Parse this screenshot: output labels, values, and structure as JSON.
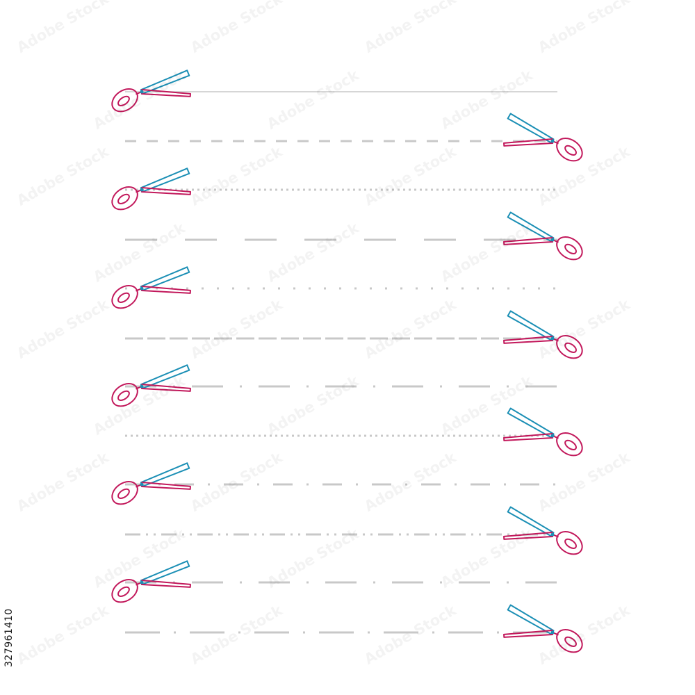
{
  "image_id_text": "327961410",
  "watermark_text": "Adobe Stock",
  "colors": {
    "background": "#ffffff",
    "cut_line": "#c8c8c8",
    "scissors_ring_blade": "#c2185b",
    "scissors_other_blade": "#1b8fb5",
    "id_text": "#1a1a1a"
  },
  "icons": [
    "scissors-icon"
  ],
  "cut_lines": [
    {
      "style": "solid",
      "scissors_side": "left"
    },
    {
      "style": "dashed",
      "scissors_side": "right"
    },
    {
      "style": "dotted",
      "scissors_side": "left"
    },
    {
      "style": "long-dash-wide-gap",
      "scissors_side": "right"
    },
    {
      "style": "sparse-dotted",
      "scissors_side": "left"
    },
    {
      "style": "dense-dash",
      "scissors_side": "right"
    },
    {
      "style": "dash-dot",
      "scissors_side": "left"
    },
    {
      "style": "dotted",
      "scissors_side": "right"
    },
    {
      "style": "dash-dot-dash",
      "scissors_side": "left"
    },
    {
      "style": "dash-dot-dot",
      "scissors_side": "right"
    },
    {
      "style": "dash-dot",
      "scissors_side": "left"
    },
    {
      "style": "long-dash-dot",
      "scissors_side": "right"
    }
  ]
}
